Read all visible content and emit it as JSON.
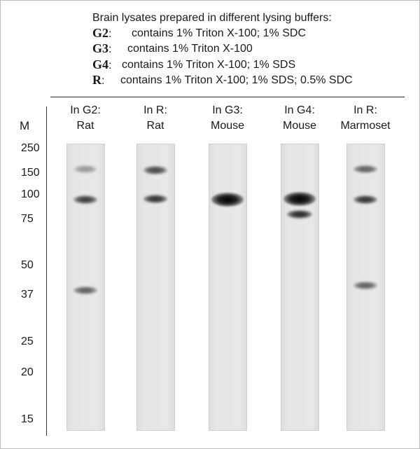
{
  "legend": {
    "title": "Brain lysates prepared in different lysing buffers:",
    "items": [
      {
        "key": "G2",
        "sep": ":",
        "desc": "contains 1% Triton X-100; 1% SDC"
      },
      {
        "key": "G3",
        "sep": ":",
        "desc": "contains 1% Triton X-100"
      },
      {
        "key": "G4",
        "sep": ":",
        "desc": "contains 1% Triton X-100; 1% SDS"
      },
      {
        "key": "R",
        "sep": ":",
        "desc": "contains 1% Triton X-100; 1% SDS; 0.5% SDC"
      }
    ]
  },
  "marker_column_label": "M",
  "markers": [
    {
      "label": "250",
      "kda": 250
    },
    {
      "label": "150",
      "kda": 150
    },
    {
      "label": "100",
      "kda": 100
    },
    {
      "label": "75",
      "kda": 75
    },
    {
      "label": "50",
      "kda": 50
    },
    {
      "label": "37",
      "kda": 37
    },
    {
      "label": "25",
      "kda": 25
    },
    {
      "label": "20",
      "kda": 20
    },
    {
      "label": "15",
      "kda": 15
    }
  ],
  "lanes": [
    {
      "line1": "In G2:",
      "line2": "Rat",
      "bands": [
        {
          "kda": 165,
          "intensity": 0.35
        },
        {
          "kda": 95,
          "intensity": 0.75
        },
        {
          "kda": 39,
          "intensity": 0.6
        }
      ]
    },
    {
      "line1": "In R:",
      "line2": "Rat",
      "bands": [
        {
          "kda": 162,
          "intensity": 0.7
        },
        {
          "kda": 96,
          "intensity": 0.8
        }
      ]
    },
    {
      "line1": "In G3:",
      "line2": "Mouse",
      "bands": [
        {
          "kda": 95,
          "intensity": 1.0
        }
      ]
    },
    {
      "line1": "In G4:",
      "line2": "Mouse",
      "bands": [
        {
          "kda": 96,
          "intensity": 1.0
        },
        {
          "kda": 80,
          "intensity": 0.85
        }
      ]
    },
    {
      "line1": "In R:",
      "line2": "Marmoset",
      "bands": [
        {
          "kda": 165,
          "intensity": 0.6
        },
        {
          "kda": 95,
          "intensity": 0.8
        },
        {
          "kda": 41,
          "intensity": 0.6
        }
      ]
    }
  ],
  "colors": {
    "band": "#000000",
    "lane": "#e6e6e6",
    "text": "#1a1a1a"
  }
}
